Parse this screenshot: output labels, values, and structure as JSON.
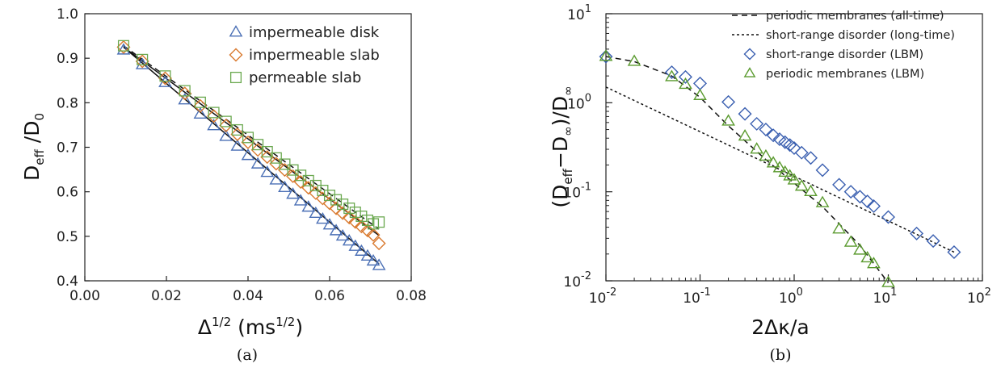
{
  "chart_data": [
    {
      "type": "scatter",
      "panel_label": "(a)",
      "xlabel": "Δ^{1/2} (ms^{1/2})",
      "ylabel": "D_eff /D_0",
      "xlim": [
        0.0,
        0.08
      ],
      "ylim": [
        0.4,
        1.0
      ],
      "xticks": [
        "0.00",
        "0.02",
        "0.04",
        "0.06",
        "0.08"
      ],
      "yticks": [
        "0.4",
        "0.5",
        "0.6",
        "0.7",
        "0.8",
        "0.9",
        "1.0"
      ],
      "legend_position": "top-right",
      "series": [
        {
          "name": "impermeable disk",
          "marker": "triangle",
          "color": "#4a6fb5",
          "x": [
            0.0095,
            0.0141,
            0.0197,
            0.0245,
            0.0283,
            0.0316,
            0.0346,
            0.0374,
            0.04,
            0.0424,
            0.0447,
            0.0469,
            0.049,
            0.051,
            0.0529,
            0.0548,
            0.0566,
            0.0583,
            0.06,
            0.0616,
            0.0632,
            0.0648,
            0.0663,
            0.0678,
            0.0693,
            0.0707,
            0.0721
          ],
          "y": [
            0.918,
            0.885,
            0.845,
            0.806,
            0.774,
            0.748,
            0.724,
            0.702,
            0.681,
            0.662,
            0.643,
            0.626,
            0.609,
            0.594,
            0.579,
            0.565,
            0.551,
            0.538,
            0.525,
            0.512,
            0.5,
            0.489,
            0.477,
            0.466,
            0.455,
            0.444,
            0.434
          ]
        },
        {
          "name": "impermeable slab",
          "marker": "diamond",
          "color": "#d9792e",
          "x": [
            0.0095,
            0.0141,
            0.0197,
            0.0245,
            0.0283,
            0.0316,
            0.0346,
            0.0374,
            0.04,
            0.0424,
            0.0447,
            0.0469,
            0.049,
            0.051,
            0.0529,
            0.0548,
            0.0566,
            0.0583,
            0.06,
            0.0616,
            0.0632,
            0.0648,
            0.0663,
            0.0678,
            0.0693,
            0.0707,
            0.0721
          ],
          "y": [
            0.925,
            0.893,
            0.855,
            0.821,
            0.793,
            0.77,
            0.749,
            0.729,
            0.711,
            0.694,
            0.678,
            0.663,
            0.649,
            0.635,
            0.622,
            0.609,
            0.597,
            0.585,
            0.574,
            0.563,
            0.552,
            0.542,
            0.532,
            0.522,
            0.513,
            0.503,
            0.484
          ]
        },
        {
          "name": "permeable slab",
          "marker": "square",
          "color": "#6aa84f",
          "x": [
            0.0095,
            0.0141,
            0.0197,
            0.0245,
            0.0283,
            0.0316,
            0.0346,
            0.0374,
            0.04,
            0.0424,
            0.0447,
            0.0469,
            0.049,
            0.051,
            0.0529,
            0.0548,
            0.0566,
            0.0583,
            0.06,
            0.0616,
            0.0632,
            0.0648,
            0.0663,
            0.0678,
            0.0693,
            0.0707,
            0.0721
          ],
          "y": [
            0.928,
            0.897,
            0.86,
            0.827,
            0.801,
            0.778,
            0.758,
            0.739,
            0.722,
            0.706,
            0.69,
            0.676,
            0.662,
            0.649,
            0.637,
            0.625,
            0.614,
            0.603,
            0.592,
            0.582,
            0.572,
            0.563,
            0.554,
            0.545,
            0.536,
            0.528,
            0.532
          ]
        }
      ],
      "fit_lines": [
        {
          "style": "solid",
          "color": "#111111",
          "x": [
            0.0095,
            0.0721
          ],
          "y": [
            0.925,
            0.438
          ]
        },
        {
          "style": "solid",
          "color": "#111111",
          "x": [
            0.0095,
            0.0721
          ],
          "y": [
            0.925,
            0.502
          ]
        },
        {
          "style": "dashed",
          "color": "#111111",
          "x": [
            0.0095,
            0.0721
          ],
          "y": [
            0.928,
            0.516
          ]
        }
      ]
    },
    {
      "type": "scatter",
      "panel_label": "(b)",
      "xlabel": "2Δκ/a",
      "ylabel": "(D_eff−D_∞)/D_∞",
      "xscale": "log",
      "yscale": "log",
      "xlim": [
        0.01,
        100
      ],
      "ylim": [
        0.01,
        10
      ],
      "xticks": [
        "10^-2",
        "10^-1",
        "10^0",
        "10^1",
        "10^2"
      ],
      "yticks": [
        "10^-2",
        "10^-1",
        "10^0",
        "10^1"
      ],
      "legend_position": "top-right",
      "lines": [
        {
          "name": "periodic membranes (all-time)",
          "style": "dashed",
          "color": "#111111",
          "x": [
            0.01,
            0.02,
            0.05,
            0.1,
            0.2,
            0.5,
            1,
            2,
            5,
            10
          ],
          "y": [
            3.3,
            2.9,
            2.0,
            1.15,
            0.55,
            0.23,
            0.125,
            0.068,
            0.025,
            0.0095
          ]
        },
        {
          "name": "short-range disorder (long-time)",
          "style": "dotted",
          "color": "#111111",
          "x": [
            0.01,
            50
          ],
          "y": [
            1.5,
            0.021
          ]
        }
      ],
      "series": [
        {
          "name": "short-range disorder (LBM)",
          "marker": "diamond",
          "color": "#3a5fb0",
          "x": [
            0.01,
            0.05,
            0.07,
            0.1,
            0.2,
            0.3,
            0.4,
            0.5,
            0.6,
            0.7,
            0.8,
            0.9,
            1.0,
            1.2,
            1.5,
            2,
            3,
            4,
            5,
            6,
            7,
            10,
            20,
            30,
            50
          ],
          "y": [
            3.3,
            2.2,
            1.95,
            1.65,
            1.02,
            0.75,
            0.58,
            0.5,
            0.43,
            0.39,
            0.36,
            0.335,
            0.31,
            0.275,
            0.24,
            0.175,
            0.12,
            0.1,
            0.088,
            0.078,
            0.069,
            0.052,
            0.034,
            0.028,
            0.021
          ]
        },
        {
          "name": "periodic membranes (LBM)",
          "marker": "triangle",
          "color": "#5a9a2e",
          "x": [
            0.01,
            0.02,
            0.05,
            0.07,
            0.1,
            0.2,
            0.3,
            0.4,
            0.5,
            0.6,
            0.7,
            0.8,
            0.9,
            1.0,
            1.2,
            1.5,
            2,
            3,
            4,
            5,
            6,
            7,
            10
          ],
          "y": [
            3.3,
            2.9,
            1.95,
            1.6,
            1.2,
            0.62,
            0.42,
            0.3,
            0.25,
            0.21,
            0.185,
            0.165,
            0.15,
            0.135,
            0.115,
            0.1,
            0.075,
            0.038,
            0.027,
            0.022,
            0.018,
            0.0155,
            0.0095
          ]
        }
      ]
    }
  ],
  "captions": {
    "a": "(a)",
    "b": "(b)"
  }
}
